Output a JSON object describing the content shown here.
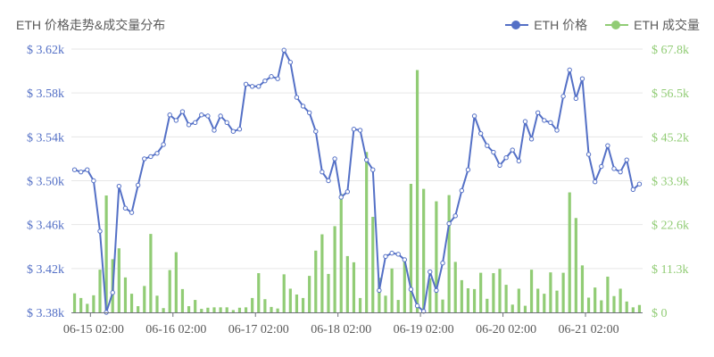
{
  "title": "ETH 价格走势&成交量分布",
  "legend": [
    {
      "label": "ETH 价格",
      "color": "#5470c6"
    },
    {
      "label": "ETH 成交量",
      "color": "#91cc75"
    }
  ],
  "chart_data": {
    "type": "line+bar",
    "x_tick_labels": [
      "06-15 02:00",
      "06-16 02:00",
      "06-17 02:00",
      "06-18 02:00",
      "06-19 02:00",
      "06-20 02:00",
      "06-21 02:00"
    ],
    "y_left_ticks": [
      "$ 3.38k",
      "$ 3.42k",
      "$ 3.46k",
      "$ 3.50k",
      "$ 3.54k",
      "$ 3.58k",
      "$ 3.62k"
    ],
    "y_right_ticks": [
      "$ 0",
      "$ 11.3k",
      "$ 22.6k",
      "$ 33.9k",
      "$ 45.2k",
      "$ 56.5k",
      "$ 67.8k"
    ],
    "y_left_range": [
      3.38,
      3.62
    ],
    "y_right_range": [
      0,
      67.8
    ],
    "y_left_unit": "thousand USD",
    "y_right_unit": "thousand",
    "grid": true,
    "series": [
      {
        "name": "ETH 价格",
        "type": "line",
        "axis": "left",
        "values": [
          3.51,
          3.508,
          3.51,
          3.5,
          3.454,
          3.38,
          3.398,
          3.495,
          3.475,
          3.471,
          3.496,
          3.52,
          3.522,
          3.525,
          3.533,
          3.56,
          3.555,
          3.563,
          3.551,
          3.553,
          3.56,
          3.559,
          3.546,
          3.559,
          3.553,
          3.545,
          3.547,
          3.588,
          3.586,
          3.586,
          3.591,
          3.595,
          3.593,
          3.619,
          3.608,
          3.576,
          3.568,
          3.562,
          3.545,
          3.508,
          3.5,
          3.52,
          3.485,
          3.49,
          3.547,
          3.546,
          3.519,
          3.51,
          3.4,
          3.431,
          3.434,
          3.433,
          3.428,
          3.401,
          3.386,
          3.381,
          3.417,
          3.4,
          3.425,
          3.461,
          3.468,
          3.491,
          3.51,
          3.559,
          3.543,
          3.532,
          3.526,
          3.514,
          3.521,
          3.528,
          3.518,
          3.554,
          3.538,
          3.562,
          3.555,
          3.553,
          3.546,
          3.577,
          3.601,
          3.575,
          3.593,
          3.524,
          3.499,
          3.513,
          3.532,
          3.511,
          3.508,
          3.519,
          3.492,
          3.497
        ]
      },
      {
        "name": "ETH 成交量",
        "type": "bar",
        "axis": "right",
        "values": [
          4.9,
          3.7,
          2.2,
          4.4,
          11.0,
          30.1,
          13.7,
          16.5,
          9.0,
          4.8,
          1.6,
          6.8,
          20.2,
          4.3,
          1.1,
          10.9,
          15.5,
          6.0,
          1.6,
          3.2,
          0.9,
          1.2,
          1.3,
          1.3,
          1.3,
          0.6,
          1.2,
          1.3,
          3.7,
          10.1,
          3.4,
          1.4,
          1.0,
          9.8,
          6.1,
          4.6,
          3.7,
          9.4,
          15.9,
          20.1,
          9.9,
          22.2,
          30.5,
          14.5,
          12.9,
          3.7,
          41.3,
          24.6,
          8.9,
          4.3,
          11.3,
          3.2,
          14.1,
          33.1,
          62.4,
          31.8,
          8.8,
          28.6,
          3.3,
          30.2,
          13.0,
          8.3,
          6.2,
          6.0,
          10.2,
          3.5,
          10.1,
          11.2,
          7.1,
          2.0,
          6.1,
          1.7,
          11.0,
          6.1,
          4.8,
          10.3,
          5.6,
          10.2,
          30.9,
          24.3,
          12.1,
          3.8,
          6.4,
          3.1,
          9.2,
          4.2,
          6.1,
          2.8,
          1.3,
          1.9
        ]
      }
    ]
  }
}
